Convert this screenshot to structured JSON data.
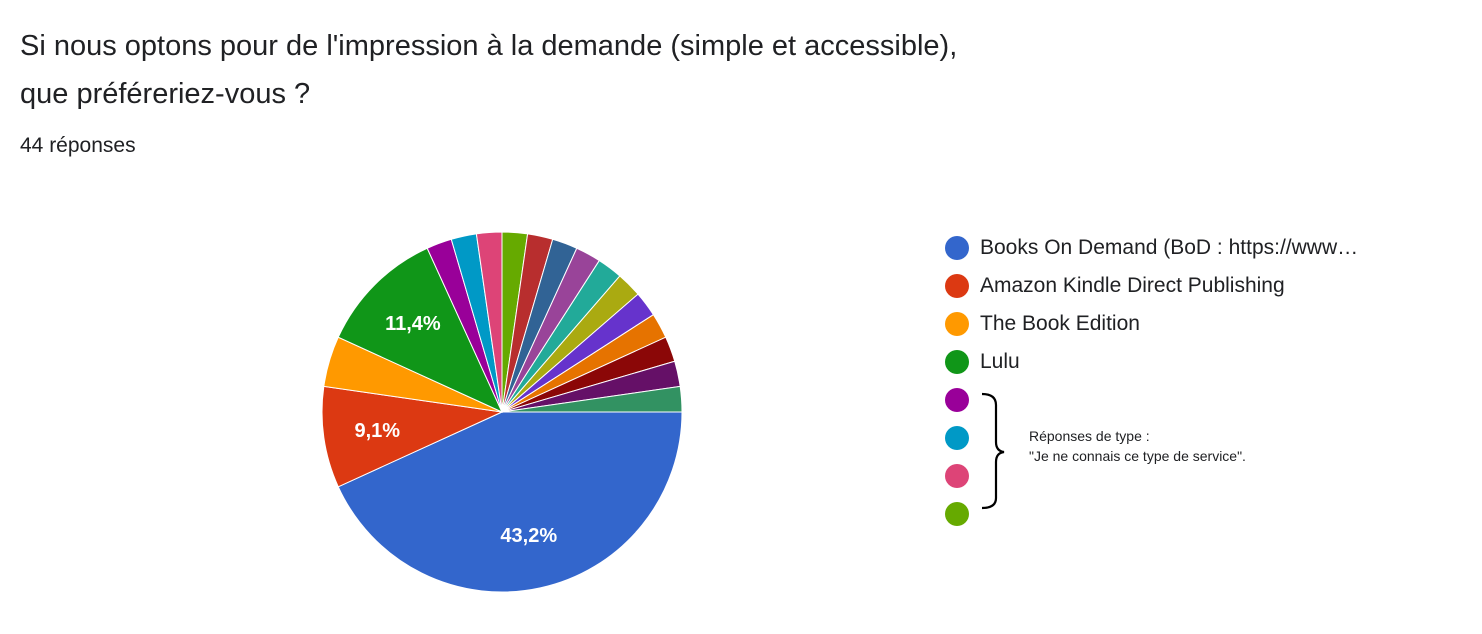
{
  "header": {
    "title_line1": "Si nous optons pour de l'impression à la demande (simple et accessible),",
    "title_line2": "que préféreriez-vous ?",
    "responses": "44 réponses"
  },
  "annotation": {
    "line1": "Réponses de type :",
    "line2": "\"Je ne connais ce type de service\"."
  },
  "chart_data": {
    "type": "pie",
    "total": 44,
    "start": "3 o'clock, clockwise",
    "slices": [
      {
        "label": "Books On Demand (BoD : https://www…",
        "value": 19,
        "pct_label": "43,2%",
        "color": "#3366cc"
      },
      {
        "label": "Amazon Kindle Direct Publishing",
        "value": 4,
        "pct_label": "9,1%",
        "color": "#dc3912"
      },
      {
        "label": "The Book Edition",
        "value": 2,
        "pct_label": "",
        "color": "#ff9900"
      },
      {
        "label": "Lulu",
        "value": 5,
        "pct_label": "11,4%",
        "color": "#109618"
      },
      {
        "label": "",
        "value": 1,
        "pct_label": "",
        "color": "#990099"
      },
      {
        "label": "",
        "value": 1,
        "pct_label": "",
        "color": "#0099c6"
      },
      {
        "label": "",
        "value": 1,
        "pct_label": "",
        "color": "#dd4477"
      },
      {
        "label": "",
        "value": 1,
        "pct_label": "",
        "color": "#66aa00"
      },
      {
        "label": "",
        "value": 1,
        "pct_label": "",
        "color": "#b82e2e"
      },
      {
        "label": "",
        "value": 1,
        "pct_label": "",
        "color": "#316395"
      },
      {
        "label": "",
        "value": 1,
        "pct_label": "",
        "color": "#994499"
      },
      {
        "label": "",
        "value": 1,
        "pct_label": "",
        "color": "#22aa99"
      },
      {
        "label": "",
        "value": 1,
        "pct_label": "",
        "color": "#aaaa11"
      },
      {
        "label": "",
        "value": 1,
        "pct_label": "",
        "color": "#6633cc"
      },
      {
        "label": "",
        "value": 1,
        "pct_label": "",
        "color": "#e67300"
      },
      {
        "label": "",
        "value": 1,
        "pct_label": "",
        "color": "#8b0707"
      },
      {
        "label": "",
        "value": 1,
        "pct_label": "",
        "color": "#651067"
      },
      {
        "label": "",
        "value": 1,
        "pct_label": "",
        "color": "#329262"
      }
    ],
    "legend_visible_count": 8
  }
}
